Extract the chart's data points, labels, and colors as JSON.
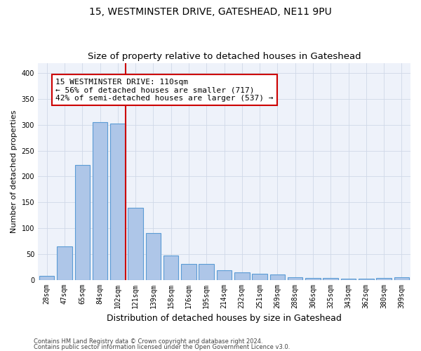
{
  "title": "15, WESTMINSTER DRIVE, GATESHEAD, NE11 9PU",
  "subtitle": "Size of property relative to detached houses in Gateshead",
  "xlabel": "Distribution of detached houses by size in Gateshead",
  "ylabel": "Number of detached properties",
  "bar_labels": [
    "28sqm",
    "47sqm",
    "65sqm",
    "84sqm",
    "102sqm",
    "121sqm",
    "139sqm",
    "158sqm",
    "176sqm",
    "195sqm",
    "214sqm",
    "232sqm",
    "251sqm",
    "269sqm",
    "288sqm",
    "306sqm",
    "325sqm",
    "343sqm",
    "362sqm",
    "380sqm",
    "399sqm"
  ],
  "bar_values": [
    8,
    65,
    222,
    305,
    303,
    140,
    90,
    47,
    30,
    30,
    19,
    15,
    11,
    10,
    5,
    4,
    4,
    2,
    2,
    4,
    5
  ],
  "bar_color": "#aec6e8",
  "bar_edgecolor": "#5b9bd5",
  "highlight_bar_index": 4,
  "annotation_line1": "15 WESTMINSTER DRIVE: 110sqm",
  "annotation_line2": "← 56% of detached houses are smaller (717)",
  "annotation_line3": "42% of semi-detached houses are larger (537) →",
  "annotation_box_color": "#ffffff",
  "annotation_box_edgecolor": "#cc0000",
  "vline_color": "#cc0000",
  "ylim": [
    0,
    420
  ],
  "yticks": [
    0,
    50,
    100,
    150,
    200,
    250,
    300,
    350,
    400
  ],
  "grid_color": "#d0d8e8",
  "background_color": "#eef2fa",
  "footer_line1": "Contains HM Land Registry data © Crown copyright and database right 2024.",
  "footer_line2": "Contains public sector information licensed under the Open Government Licence v3.0.",
  "title_fontsize": 10,
  "subtitle_fontsize": 9.5,
  "xlabel_fontsize": 9,
  "ylabel_fontsize": 8,
  "tick_fontsize": 7,
  "annotation_fontsize": 8
}
